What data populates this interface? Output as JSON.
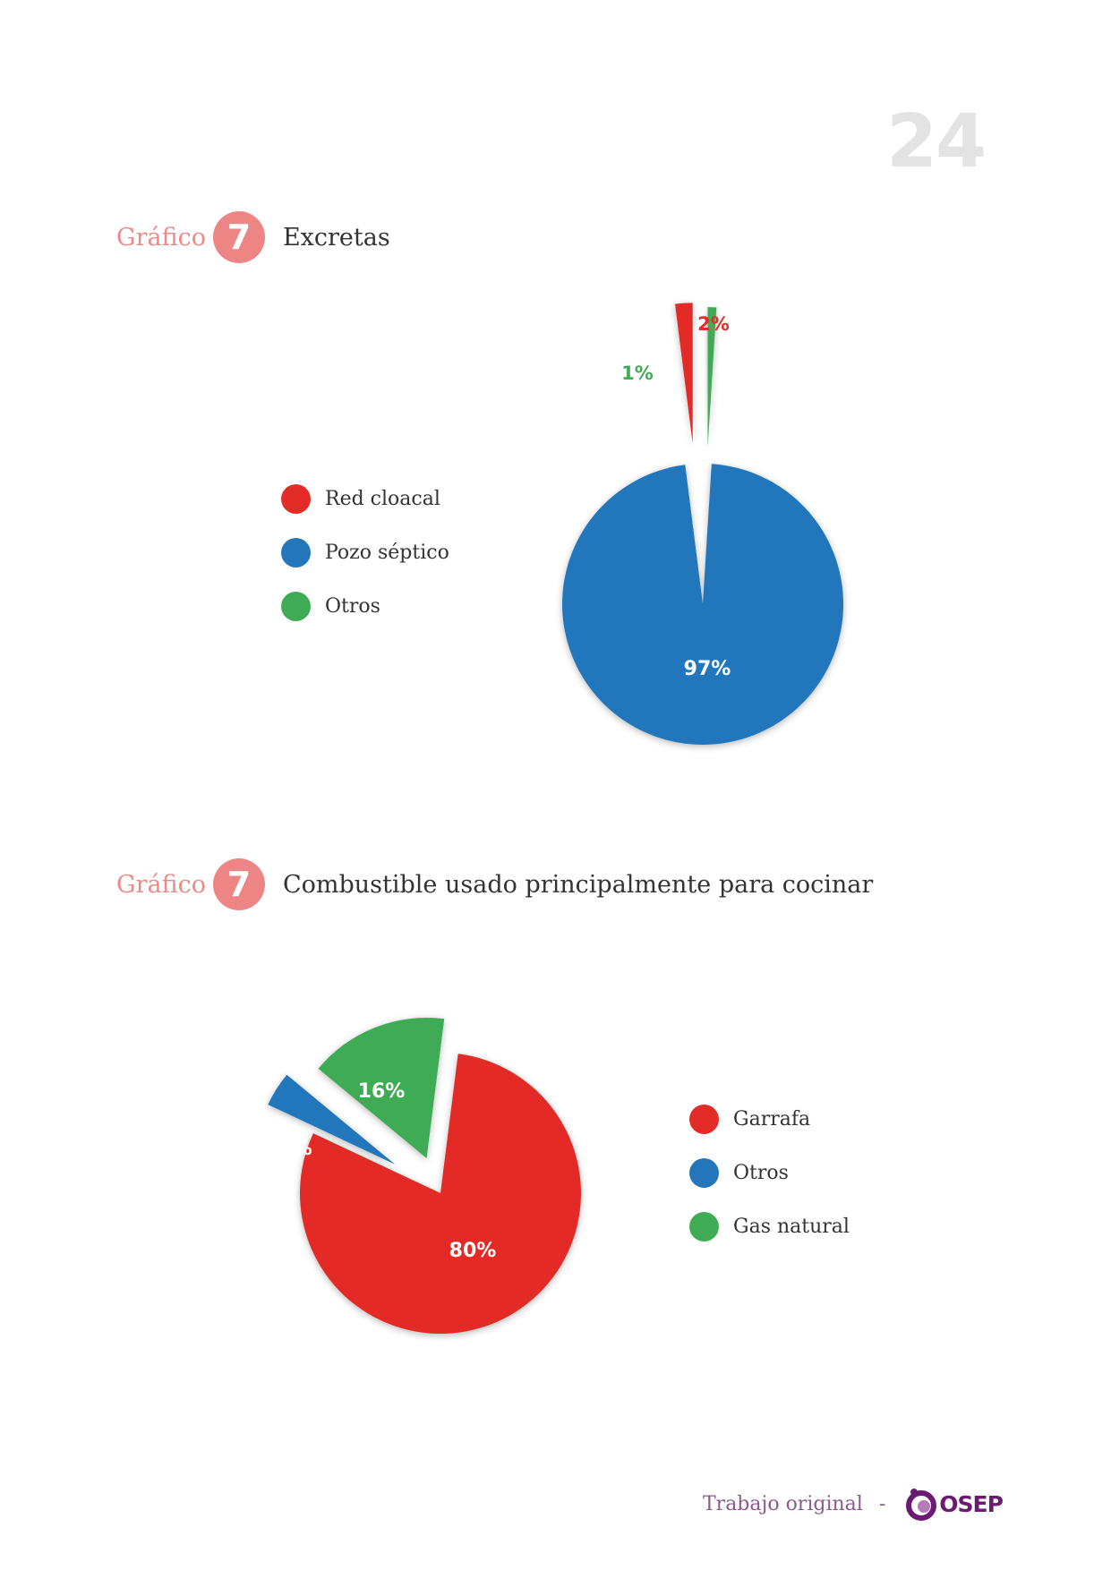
{
  "page_number": "24",
  "footer": {
    "text": "Trabajo original",
    "separator": "-",
    "logo_text": "OSEP"
  },
  "colors": {
    "red": "#e32b27",
    "blue": "#2476bb",
    "green": "#40ab55",
    "heading_pink": "#ec8584",
    "page_number": "#e3e3e3",
    "brand": "#6b1b71"
  },
  "chart_data": [
    {
      "type": "pie",
      "heading": {
        "keyword": "Gráfico",
        "number": "7",
        "title": "Excretas"
      },
      "legend": [
        "Red cloacal",
        "Pozo séptico",
        "Otros"
      ],
      "slices": [
        {
          "name": "Pozo séptico",
          "value": 97,
          "label": "97%",
          "color": "#2476bb"
        },
        {
          "name": "Red cloacal",
          "value": 2,
          "label": "2%",
          "color": "#e32b27"
        },
        {
          "name": "Otros",
          "value": 1,
          "label": "1%",
          "color": "#40ab55"
        }
      ]
    },
    {
      "type": "pie",
      "heading": {
        "keyword": "Gráfico",
        "number": "7",
        "title": "Combustible usado principalmente para cocinar"
      },
      "legend": [
        "Garrafa",
        "Otros",
        "Gas natural"
      ],
      "slices": [
        {
          "name": "Garrafa",
          "value": 80,
          "label": "80%",
          "color": "#e32b27"
        },
        {
          "name": "Otros",
          "value": 4,
          "label": "4%",
          "color": "#2476bb"
        },
        {
          "name": "Gas natural",
          "value": 16,
          "label": "16%",
          "color": "#40ab55"
        }
      ]
    }
  ]
}
